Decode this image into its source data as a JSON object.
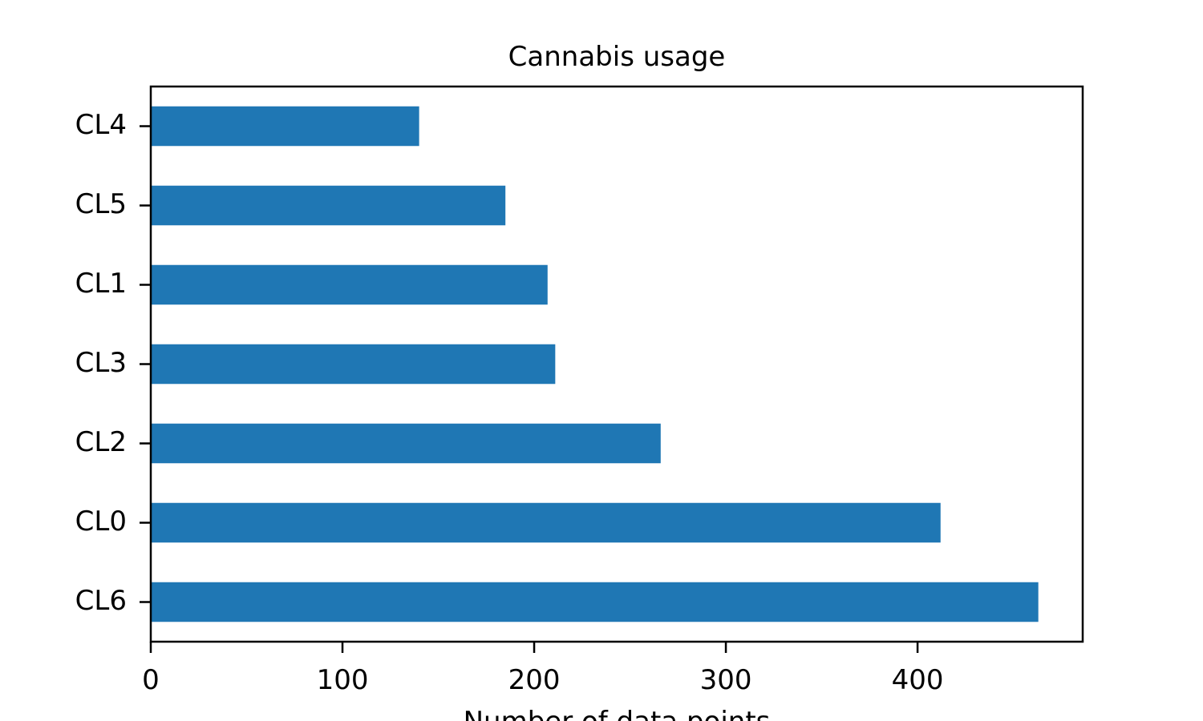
{
  "chart_data": {
    "type": "bar",
    "orientation": "horizontal",
    "title": "Cannabis usage",
    "xlabel": "Number of data points",
    "ylabel": "",
    "categories": [
      "CL6",
      "CL0",
      "CL2",
      "CL3",
      "CL1",
      "CL5",
      "CL4"
    ],
    "values": [
      463,
      412,
      266,
      211,
      207,
      185,
      140
    ],
    "xlim": [
      0,
      486.15
    ],
    "xticks": [
      0,
      100,
      200,
      300,
      400
    ],
    "xtick_labels": [
      "0",
      "100",
      "200",
      "300",
      "400"
    ],
    "grid": false,
    "legend": "none",
    "bar_color": "#1f77b4"
  }
}
